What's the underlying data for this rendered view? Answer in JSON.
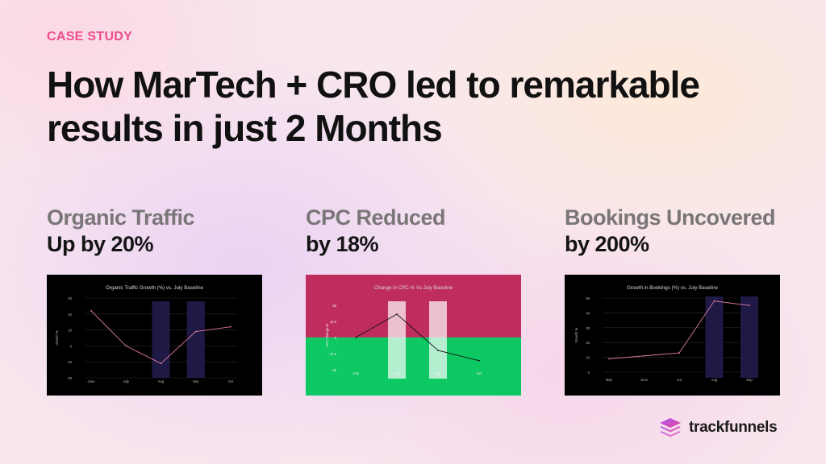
{
  "eyebrow": "CASE STUDY",
  "headline": "How MarTech + CRO led to remarkable results in just 2 Months",
  "stats": [
    {
      "label": "Organic Traffic",
      "value": "Up by 20%"
    },
    {
      "label": "CPC Reduced",
      "value": "by 18%"
    },
    {
      "label": "Bookings Uncovered",
      "value": "by 200%"
    }
  ],
  "brand": {
    "name": "trackfunnels",
    "logo_icon": "stacked-layers-icon"
  },
  "colors": {
    "accent": "#ec4f8a",
    "chart_bg": "#000000",
    "bar": "#1e1a45",
    "line": "#e07a98",
    "cpc_top": "#bf2d5e",
    "cpc_bottom": "#0dc863"
  },
  "chart_data": [
    {
      "type": "line",
      "title": "Organic Traffic Growth (%) vs. July Baseline",
      "ylabel": "Growth %",
      "xlabel": "",
      "categories": [
        "June",
        "July",
        "Aug",
        "Sep",
        "Oct"
      ],
      "series": [
        {
          "values": [
            22,
            0,
            -11,
            9,
            12
          ]
        }
      ],
      "highlight": [
        "Aug",
        "Sep"
      ],
      "ylim": [
        -20,
        30
      ],
      "yticks": [
        30,
        20,
        10,
        0,
        -10,
        -20
      ],
      "ytick_labels": [
        "30",
        "20",
        "10",
        "0",
        "-10",
        "-20"
      ],
      "grid": true
    },
    {
      "type": "line",
      "title": "Change in CPC % Vs July Baseline",
      "ylabel": "CPC Change %",
      "xlabel": "",
      "categories": [
        "July",
        "Aug",
        "Sep",
        "Oct"
      ],
      "series": [
        {
          "values": [
            0,
            18,
            -10,
            -18
          ]
        }
      ],
      "highlight": [
        "Aug",
        "Sep"
      ],
      "ylim": [
        -25,
        28
      ],
      "yticks": [
        25,
        12.5,
        0,
        -12.5,
        -25
      ],
      "ytick_labels": [
        "25",
        "12.5",
        "0",
        "-12.5",
        "-25"
      ],
      "grid": false
    },
    {
      "type": "line",
      "title": "Growth in Bookings (%) vs. July Baseline",
      "ylabel": "Growth %",
      "xlabel": "",
      "categories": [
        "May",
        "June",
        "Jul",
        "Aug",
        "Sep"
      ],
      "series": [
        {
          "values": [
            9,
            11,
            13,
            48,
            45
          ]
        }
      ],
      "highlight": [
        "Aug",
        "Sep"
      ],
      "ylim": [
        0,
        50
      ],
      "yticks": [
        50,
        40,
        30,
        20,
        10,
        0
      ],
      "ytick_labels": [
        "50",
        "40",
        "30",
        "20",
        "10",
        "0"
      ],
      "grid": true
    }
  ]
}
